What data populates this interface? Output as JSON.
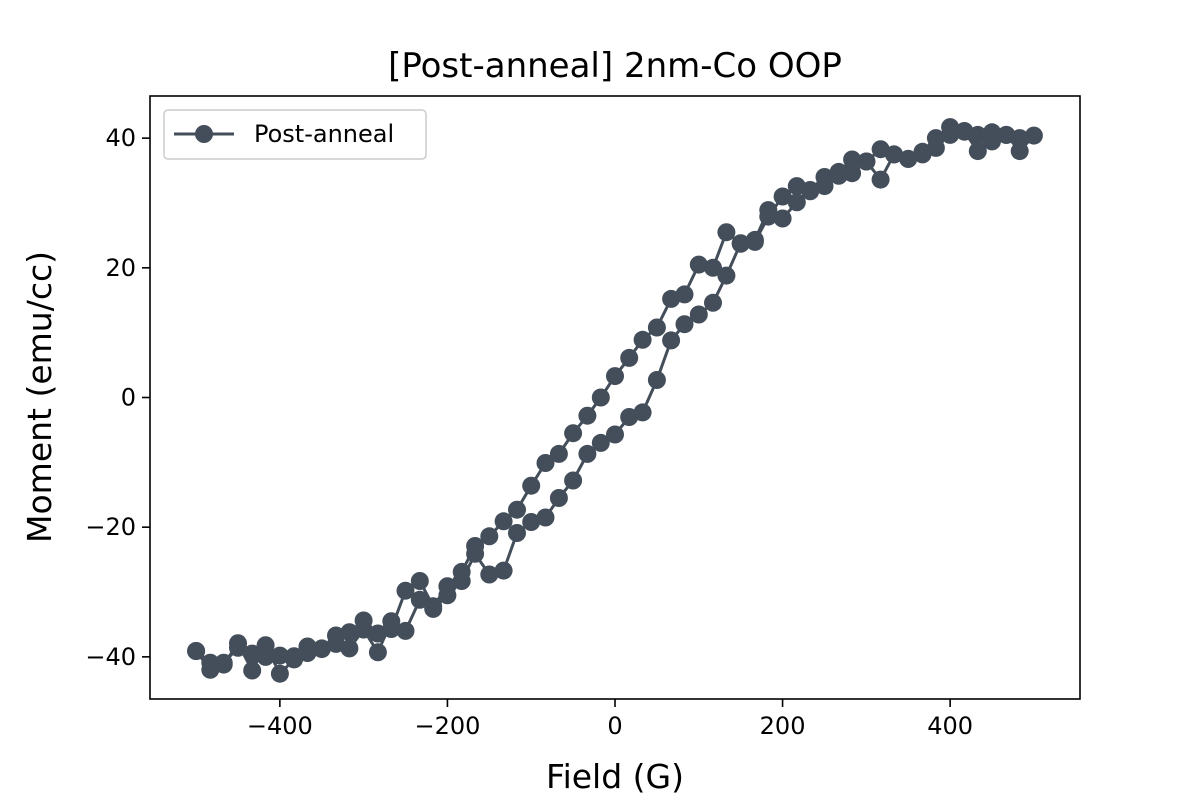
{
  "chart_data": {
    "type": "line",
    "title": "[Post-anneal] 2nm-Co OOP",
    "xlabel": "Field (G)",
    "ylabel": "Moment (emu/cc)",
    "xlim": [
      -555,
      555
    ],
    "ylim": [
      -46.5,
      46.5
    ],
    "xticks": [
      -400,
      -200,
      0,
      200,
      400
    ],
    "xtick_labels": [
      "−400",
      "−200",
      "0",
      "200",
      "400"
    ],
    "yticks": [
      -40,
      -20,
      0,
      20,
      40
    ],
    "ytick_labels": [
      "−40",
      "−20",
      "0",
      "20",
      "40"
    ],
    "grid": false,
    "legend_position": "top-left",
    "color": "#434e5a",
    "series": [
      {
        "name": "Post-anneal",
        "x": [
          -500,
          -483,
          -467,
          -450,
          -433,
          -417,
          -400,
          -383,
          -367,
          -350,
          -333,
          -317,
          -300,
          -283,
          -267,
          -250,
          -233,
          -217,
          -200,
          -183,
          -167,
          -150,
          -133,
          -117,
          -100,
          -83,
          -67,
          -50,
          -33,
          -17,
          0,
          17,
          33,
          50,
          67,
          83,
          100,
          117,
          133,
          150,
          167,
          183,
          200,
          217,
          233,
          250,
          267,
          283,
          300,
          317,
          333,
          350,
          367,
          383,
          400,
          417,
          433,
          450,
          467,
          483,
          500,
          483,
          467,
          450,
          433,
          417,
          400,
          383,
          367,
          350,
          333,
          317,
          300,
          283,
          267,
          250,
          233,
          217,
          200,
          183,
          167,
          150,
          133,
          117,
          100,
          83,
          67,
          50,
          33,
          17,
          0,
          -17,
          -33,
          -50,
          -67,
          -83,
          -100,
          -117,
          -133,
          -150,
          -167,
          -183,
          -200,
          -217,
          -233,
          -250,
          -267,
          -283,
          -300,
          -317,
          -333,
          -350,
          -367,
          -383,
          -400,
          -417,
          -433,
          -450,
          -467,
          -483,
          -500
        ],
        "y": [
          -39.1,
          -42.0,
          -41.2,
          -37.9,
          -42.1,
          -38.2,
          -42.6,
          -40.4,
          -38.4,
          -38.7,
          -38.0,
          -38.7,
          -35.8,
          -39.3,
          -34.5,
          -36.0,
          -31.2,
          -32.6,
          -30.5,
          -28.3,
          -24.1,
          -27.3,
          -26.7,
          -20.9,
          -19.2,
          -18.5,
          -15.5,
          -12.8,
          -8.7,
          -7.0,
          -5.7,
          -3.0,
          -2.3,
          2.7,
          8.8,
          11.3,
          12.8,
          14.6,
          18.8,
          23.8,
          24.3,
          28.9,
          27.6,
          30.1,
          31.8,
          32.6,
          34.2,
          34.6,
          36.4,
          33.6,
          37.5,
          36.8,
          37.9,
          38.5,
          41.7,
          41.0,
          38.0,
          40.9,
          40.5,
          38.0,
          40.4,
          40.0,
          40.5,
          39.5,
          40.5,
          41.1,
          40.5,
          40.0,
          37.5,
          36.8,
          37.5,
          38.3,
          36.4,
          36.7,
          34.8,
          34.0,
          32.0,
          32.6,
          31.0,
          27.9,
          24.0,
          23.7,
          25.5,
          20.0,
          20.5,
          15.9,
          15.2,
          10.8,
          8.9,
          6.1,
          3.3,
          0.0,
          -2.8,
          -5.5,
          -8.7,
          -10.1,
          -13.6,
          -17.3,
          -19.1,
          -21.4,
          -22.9,
          -26.9,
          -29.1,
          -32.2,
          -28.3,
          -29.8,
          -35.7,
          -36.4,
          -34.4,
          -36.2,
          -36.7,
          -38.8,
          -39.4,
          -39.9,
          -39.8,
          -40.0,
          -39.5,
          -38.6,
          -40.9,
          -40.9,
          -39.1
        ]
      }
    ]
  }
}
